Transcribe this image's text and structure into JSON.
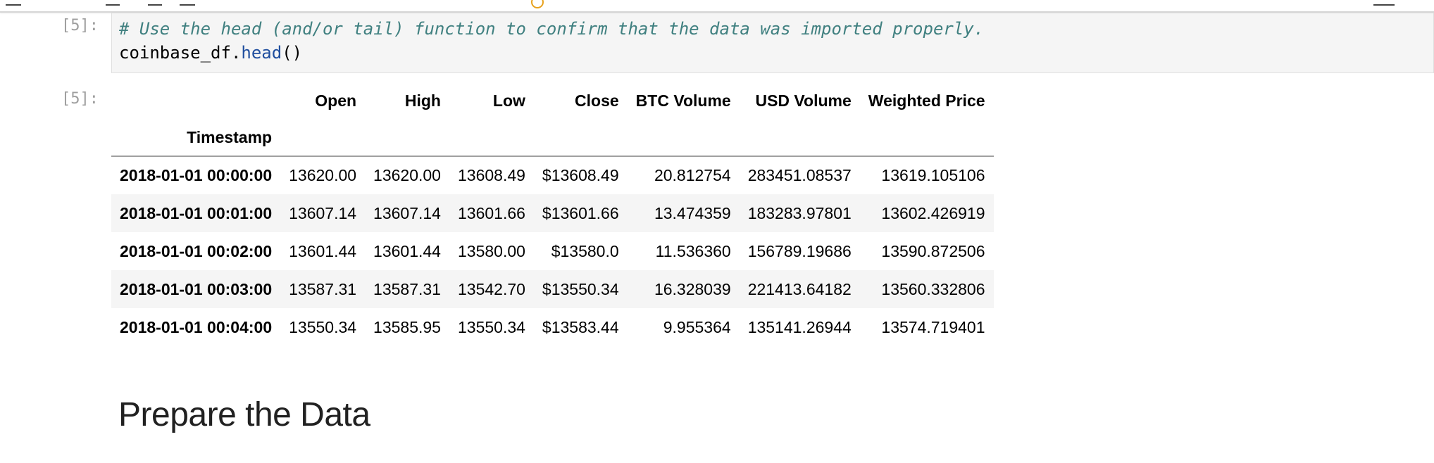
{
  "code_cell": {
    "prompt": "[5]:",
    "comment": "# Use the head (and/or tail) function to confirm that the data was imported properly.",
    "code_var": "coinbase_df",
    "code_dot": ".",
    "code_fn": "head",
    "code_parens": "()"
  },
  "output_cell": {
    "prompt": "[5]:",
    "columns": [
      "Open",
      "High",
      "Low",
      "Close",
      "BTC Volume",
      "USD Volume",
      "Weighted Price"
    ],
    "index_name": "Timestamp",
    "rows": [
      {
        "index": "2018-01-01 00:00:00",
        "values": [
          "13620.00",
          "13620.00",
          "13608.49",
          "$13608.49",
          "20.812754",
          "283451.08537",
          "13619.105106"
        ]
      },
      {
        "index": "2018-01-01 00:01:00",
        "values": [
          "13607.14",
          "13607.14",
          "13601.66",
          "$13601.66",
          "13.474359",
          "183283.97801",
          "13602.426919"
        ]
      },
      {
        "index": "2018-01-01 00:02:00",
        "values": [
          "13601.44",
          "13601.44",
          "13580.00",
          "$13580.0",
          "11.536360",
          "156789.19686",
          "13590.872506"
        ]
      },
      {
        "index": "2018-01-01 00:03:00",
        "values": [
          "13587.31",
          "13587.31",
          "13542.70",
          "$13550.34",
          "16.328039",
          "221413.64182",
          "13560.332806"
        ]
      },
      {
        "index": "2018-01-01 00:04:00",
        "values": [
          "13550.34",
          "13585.95",
          "13550.34",
          "$13583.44",
          "9.955364",
          "135141.26944",
          "13574.719401"
        ]
      }
    ]
  },
  "markdown": {
    "heading": "Prepare the Data"
  }
}
